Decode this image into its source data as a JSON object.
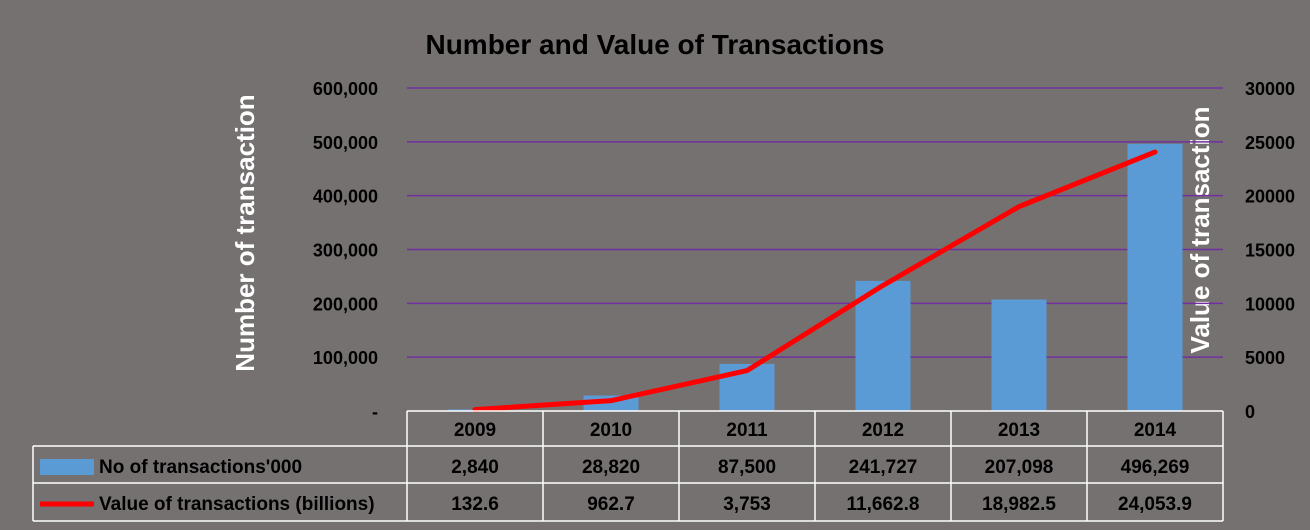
{
  "chart_data": {
    "type": "bar",
    "title": "Number and Value of Transactions",
    "categories": [
      "2009",
      "2010",
      "2011",
      "2012",
      "2013",
      "2014"
    ],
    "series": [
      {
        "name": "No of transactions'000",
        "type": "bar",
        "axis": "left",
        "color": "#5B9BD5",
        "values": [
          2840,
          28820,
          87500,
          241727,
          207098,
          496269
        ],
        "labels": [
          "2,840",
          "28,820",
          "87,500",
          "241,727",
          "207,098",
          "496,269"
        ]
      },
      {
        "name": "Value of transactions (billions)",
        "type": "line",
        "axis": "right",
        "color": "#FF0000",
        "values": [
          132.6,
          962.7,
          3753,
          11662.8,
          18982.5,
          24053.9
        ],
        "labels": [
          "132.6",
          "962.7",
          "3,753",
          "11,662.8",
          "18,982.5",
          "24,053.9"
        ]
      }
    ],
    "ylabel": "Number of transaction",
    "y2label": "Value  of  transaction",
    "ylim": [
      0,
      600000
    ],
    "y2lim": [
      0,
      30000
    ],
    "yticks": [
      "-",
      "100,000",
      "200,000",
      "300,000",
      "400,000",
      "500,000",
      "600,000"
    ],
    "y2ticks": [
      "0",
      "5000",
      "10000",
      "15000",
      "20000",
      "25000",
      "30000"
    ],
    "grid": true,
    "grid_color": "#7030A0",
    "legend": "data-table"
  }
}
